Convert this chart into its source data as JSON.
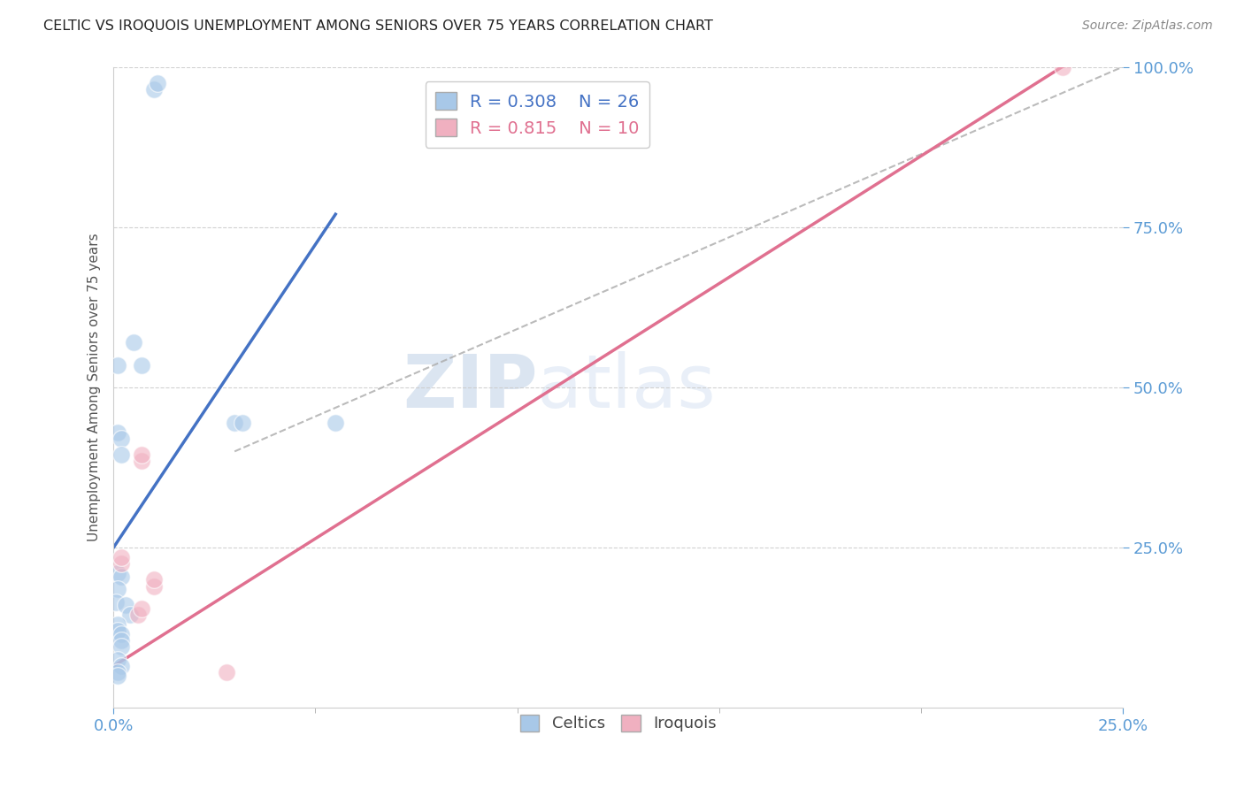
{
  "title": "CELTIC VS IROQUOIS UNEMPLOYMENT AMONG SENIORS OVER 75 YEARS CORRELATION CHART",
  "source": "Source: ZipAtlas.com",
  "ylabel": "Unemployment Among Seniors over 75 years",
  "xlim": [
    0.0,
    0.25
  ],
  "ylim": [
    0.0,
    1.0
  ],
  "xtick_positions": [
    0.0,
    0.25
  ],
  "xtick_labels": [
    "0.0%",
    "25.0%"
  ],
  "ytick_positions": [
    0.25,
    0.5,
    0.75,
    1.0
  ],
  "ytick_labels": [
    "25.0%",
    "50.0%",
    "75.0%",
    "100.0%"
  ],
  "celtic_color": "#a8c8e8",
  "iroquois_color": "#f0b0c0",
  "celtic_R": 0.308,
  "celtic_N": 26,
  "iroquois_R": 0.815,
  "iroquois_N": 10,
  "celtic_line_color": "#4472c4",
  "iroquois_line_color": "#e07090",
  "background_color": "#ffffff",
  "grid_color": "#cccccc",
  "title_color": "#222222",
  "axis_label_color": "#555555",
  "tick_color": "#5b9bd5",
  "watermark_zip": "ZIP",
  "watermark_atlas": "atlas",
  "celtic_x": [
    0.005,
    0.007,
    0.001,
    0.001,
    0.002,
    0.002,
    0.001,
    0.002,
    0.001,
    0.0005,
    0.003,
    0.004,
    0.001,
    0.001,
    0.002,
    0.002,
    0.002,
    0.01,
    0.011,
    0.001,
    0.002,
    0.03,
    0.032,
    0.001,
    0.001,
    0.055
  ],
  "celtic_y": [
    0.57,
    0.535,
    0.535,
    0.43,
    0.42,
    0.395,
    0.21,
    0.205,
    0.185,
    0.165,
    0.16,
    0.145,
    0.13,
    0.12,
    0.115,
    0.105,
    0.095,
    0.965,
    0.975,
    0.075,
    0.065,
    0.445,
    0.445,
    0.055,
    0.05,
    0.445
  ],
  "iroquois_x": [
    0.002,
    0.002,
    0.006,
    0.007,
    0.007,
    0.007,
    0.01,
    0.01,
    0.028,
    0.235
  ],
  "iroquois_y": [
    0.225,
    0.235,
    0.145,
    0.155,
    0.385,
    0.395,
    0.19,
    0.2,
    0.055,
    1.0
  ],
  "celtic_line_x": [
    0.0,
    0.055
  ],
  "celtic_line_y": [
    0.25,
    0.77
  ],
  "iroquois_line_x": [
    0.0,
    0.235
  ],
  "iroquois_line_y": [
    0.065,
    1.0
  ],
  "ref_line_x": [
    0.03,
    0.25
  ],
  "ref_line_y": [
    0.4,
    1.0
  ],
  "marker_size": 200
}
